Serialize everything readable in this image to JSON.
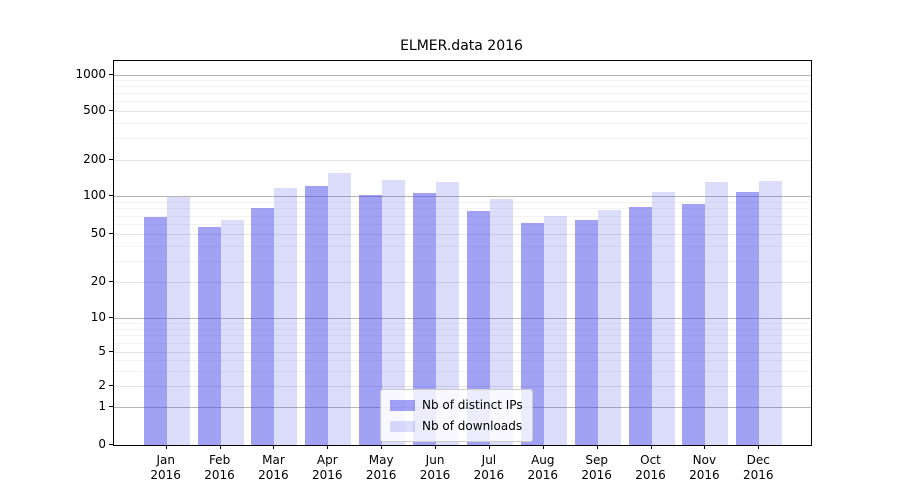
{
  "title": "ELMER.data 2016",
  "chart_data": {
    "type": "bar",
    "title": "ELMER.data 2016",
    "xlabel": "",
    "ylabel": "",
    "yscale": "symlog",
    "grid": true,
    "legend_position": "lower center",
    "y_ticks": [
      0,
      1,
      2,
      5,
      10,
      20,
      50,
      100,
      200,
      500,
      1000
    ],
    "y_minor_ticks": [
      3,
      4,
      6,
      7,
      8,
      9,
      30,
      40,
      60,
      70,
      80,
      90,
      300,
      400,
      600,
      700,
      800,
      900
    ],
    "ylim": [
      0,
      1300
    ],
    "categories": [
      "Jan 2016",
      "Feb 2016",
      "Mar 2016",
      "Apr 2016",
      "May 2016",
      "Jun 2016",
      "Jul 2016",
      "Aug 2016",
      "Sep 2016",
      "Oct 2016",
      "Nov 2016",
      "Dec 2016"
    ],
    "series": [
      {
        "name": "Nb of distinct IPs",
        "key": "distinct-ips",
        "fill": "rgba(70,70,235,0.5)",
        "solid_hex": "#a2a2ee",
        "values": [
          68,
          57,
          81,
          122,
          101,
          105,
          76,
          61,
          64,
          82,
          87,
          109
        ]
      },
      {
        "name": "Nb of downloads",
        "key": "downloads",
        "fill": "rgba(70,70,235,0.19)",
        "solid_hex": "#dcdcfa",
        "values": [
          98,
          64,
          116,
          156,
          135,
          130,
          95,
          69,
          77,
          108,
          130,
          134
        ]
      }
    ],
    "colors": {
      "axis": "#000000",
      "grid_major_decade": "#b5b5b5",
      "grid_major_other": "#e4e4e4",
      "grid_minor": "#f2f2f2"
    }
  }
}
